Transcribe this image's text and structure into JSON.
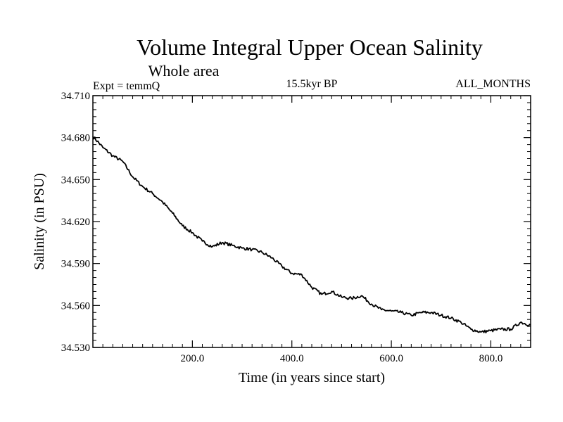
{
  "chart_data": {
    "type": "line",
    "title": "Volume Integral Upper Ocean Salinity",
    "subtitle": "Whole area",
    "experiment_label": "Expt = temmQ",
    "period_label": "15.5kyr BP",
    "months_label": "ALL_MONTHS",
    "xlabel": "Time (in years since start)",
    "ylabel": "Salinity (in PSU)",
    "xlim": [
      0,
      880
    ],
    "ylim": [
      34.53,
      34.71
    ],
    "x_ticks": [
      200,
      400,
      600,
      800
    ],
    "x_tick_labels": [
      "200.0",
      "400.0",
      "600.0",
      "800.0"
    ],
    "y_ticks": [
      34.53,
      34.56,
      34.59,
      34.62,
      34.65,
      34.68,
      34.71
    ],
    "y_tick_labels": [
      "34.530",
      "34.560",
      "34.590",
      "34.620",
      "34.650",
      "34.680",
      "34.710"
    ],
    "grid": false,
    "series": [
      {
        "name": "Salinity",
        "x": [
          0,
          20,
          40,
          60,
          80,
          100,
          120,
          140,
          160,
          180,
          200,
          220,
          240,
          260,
          280,
          300,
          320,
          340,
          360,
          380,
          400,
          420,
          440,
          460,
          480,
          500,
          520,
          540,
          560,
          580,
          600,
          620,
          640,
          660,
          680,
          700,
          720,
          740,
          760,
          780,
          800,
          820,
          840,
          860,
          880
        ],
        "values": [
          34.681,
          34.673,
          34.667,
          34.663,
          34.652,
          34.645,
          34.64,
          34.634,
          34.626,
          34.617,
          34.612,
          34.606,
          34.602,
          34.605,
          34.603,
          34.601,
          34.6,
          34.598,
          34.594,
          34.588,
          34.583,
          34.582,
          34.573,
          34.568,
          34.57,
          34.566,
          34.565,
          34.567,
          34.561,
          34.557,
          34.556,
          34.555,
          34.553,
          34.555,
          34.555,
          34.553,
          34.551,
          34.548,
          34.543,
          34.541,
          34.542,
          34.543,
          34.543,
          34.548,
          34.546
        ]
      }
    ]
  }
}
